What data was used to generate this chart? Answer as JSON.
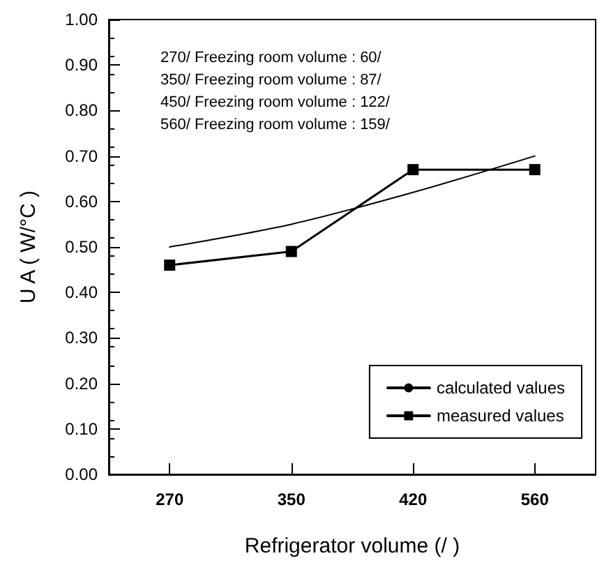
{
  "chart_data": {
    "type": "line",
    "xlabel": "Refrigerator volume (/ )",
    "ylabel": "U A ( W/°C )",
    "categories": [
      "270",
      "350",
      "420",
      "560"
    ],
    "series": [
      {
        "name": "calculated values",
        "color": "#000000",
        "marker": "none",
        "values": [
          0.5,
          0.55,
          0.62,
          0.7
        ]
      },
      {
        "name": "measured values",
        "color": "#000000",
        "marker": "square",
        "values": [
          0.46,
          0.49,
          0.67,
          0.67
        ]
      }
    ],
    "ylim": [
      0,
      1
    ],
    "yticks": [
      {
        "value": 0,
        "label": "0.00"
      },
      {
        "value": 0.1,
        "label": "0.10"
      },
      {
        "value": 0.2,
        "label": "0.20"
      },
      {
        "value": 0.3,
        "label": "0.30"
      },
      {
        "value": 0.4,
        "label": "0.40"
      },
      {
        "value": 0.5,
        "label": "0.50"
      },
      {
        "value": 0.6,
        "label": "0.60"
      },
      {
        "value": 0.7,
        "label": "0.70"
      },
      {
        "value": 0.8,
        "label": "0.80"
      },
      {
        "value": 0.9,
        "label": "0.90"
      },
      {
        "value": 1,
        "label": "1.00"
      }
    ],
    "annotations": [
      "270/ Freezing room volume : 60/",
      "350/ Freezing room volume : 87/",
      "450/ Freezing room volume : 122/",
      "560/ Freezing room volume : 159/"
    ],
    "grid": false,
    "legend": "bottom right",
    "line_style": "solid"
  }
}
